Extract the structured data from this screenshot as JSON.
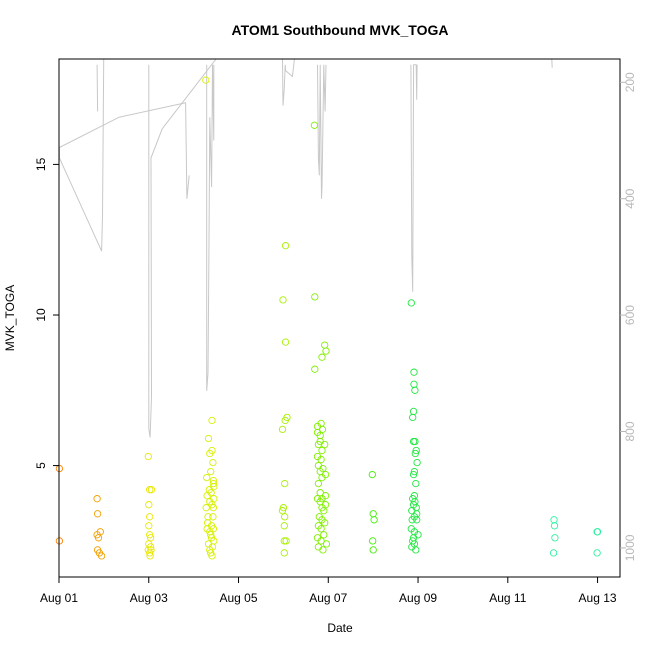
{
  "chart_data": {
    "type": "scatter",
    "title": "ATOM1 Southbound MVK_TOGA",
    "xlabel": "Date",
    "ylabel": "MVK_TOGA",
    "x_unit": "date (August)",
    "xlim": [
      0.0,
      12.5
    ],
    "ylim": [
      1.3,
      18.5
    ],
    "x_ticks": [
      {
        "x": 0,
        "label": "Aug 01"
      },
      {
        "x": 2,
        "label": "Aug 03"
      },
      {
        "x": 4,
        "label": "Aug 05"
      },
      {
        "x": 6,
        "label": "Aug 07"
      },
      {
        "x": 8,
        "label": "Aug 09"
      },
      {
        "x": 10,
        "label": "Aug 11"
      },
      {
        "x": 12,
        "label": "Aug 13"
      }
    ],
    "y_ticks": [
      5,
      10,
      15
    ],
    "right_axis": {
      "ylim": [
        1050,
        160
      ],
      "reversed": true,
      "ticks": [
        200,
        400,
        600,
        800,
        1000
      ],
      "color": "#b8b8b8"
    },
    "point_style": "open-circle",
    "series": [
      {
        "color": "#ff8000",
        "points": [
          [
            0.01,
            4.9
          ],
          [
            0.01,
            2.5
          ]
        ]
      },
      {
        "color": "#f0a000",
        "points": [
          [
            0.85,
            3.9
          ],
          [
            0.86,
            3.4
          ],
          [
            0.85,
            2.7
          ],
          [
            0.88,
            2.6
          ],
          [
            0.92,
            2.8
          ],
          [
            0.86,
            2.2
          ],
          [
            0.9,
            2.1
          ],
          [
            0.95,
            2.0
          ]
        ]
      },
      {
        "color": "#e8e800",
        "points": [
          [
            1.99,
            5.3
          ],
          [
            2.02,
            4.2
          ],
          [
            2.06,
            4.2
          ],
          [
            2.0,
            3.7
          ],
          [
            2.02,
            3.3
          ],
          [
            2.0,
            3.0
          ],
          [
            2.02,
            2.7
          ],
          [
            2.04,
            2.6
          ],
          [
            2.0,
            2.4
          ],
          [
            2.04,
            2.3
          ],
          [
            2.02,
            2.1
          ],
          [
            2.05,
            2.2
          ],
          [
            2.03,
            2.0
          ],
          [
            1.99,
            2.2
          ]
        ]
      },
      {
        "color": "#d8f000",
        "points": [
          [
            3.27,
            17.8
          ],
          [
            3.29,
            4.6
          ],
          [
            3.35,
            4.2
          ],
          [
            3.3,
            4.0
          ],
          [
            3.36,
            3.8
          ],
          [
            3.28,
            3.6
          ],
          [
            3.32,
            3.3
          ],
          [
            3.4,
            3.0
          ],
          [
            3.36,
            2.8
          ],
          [
            3.3,
            2.9
          ],
          [
            3.4,
            2.6
          ],
          [
            3.33,
            2.4
          ],
          [
            3.36,
            2.2
          ],
          [
            3.38,
            2.1
          ],
          [
            3.41,
            6.5
          ],
          [
            3.33,
            5.9
          ],
          [
            3.41,
            5.5
          ],
          [
            3.36,
            5.4
          ],
          [
            3.43,
            5.1
          ],
          [
            3.38,
            4.8
          ],
          [
            3.44,
            4.5
          ],
          [
            3.44,
            4.4
          ],
          [
            3.45,
            4.3
          ],
          [
            3.39,
            4.1
          ],
          [
            3.45,
            3.9
          ],
          [
            3.41,
            3.7
          ],
          [
            3.44,
            3.6
          ],
          [
            3.43,
            3.3
          ],
          [
            3.31,
            3.1
          ],
          [
            3.44,
            2.9
          ],
          [
            3.38,
            2.7
          ],
          [
            3.45,
            2.5
          ],
          [
            3.42,
            2.3
          ],
          [
            3.41,
            2.0
          ]
        ]
      },
      {
        "color": "#a8f000",
        "points": [
          [
            5.05,
            12.3
          ],
          [
            4.99,
            10.5
          ],
          [
            5.05,
            9.1
          ],
          [
            5.08,
            6.6
          ],
          [
            5.04,
            6.5
          ],
          [
            4.98,
            6.2
          ],
          [
            5.03,
            4.4
          ],
          [
            5.0,
            3.6
          ],
          [
            4.98,
            3.5
          ],
          [
            5.03,
            3.3
          ],
          [
            5.02,
            3.0
          ],
          [
            5.02,
            2.5
          ],
          [
            5.06,
            2.5
          ],
          [
            5.02,
            2.1
          ]
        ]
      },
      {
        "color": "#80f000",
        "points": [
          [
            5.69,
            16.3
          ],
          [
            5.7,
            10.6
          ],
          [
            5.7,
            8.2
          ],
          [
            5.86,
            8.6
          ],
          [
            5.92,
            9.0
          ],
          [
            5.95,
            8.8
          ],
          [
            5.76,
            6.3
          ],
          [
            5.84,
            6.4
          ],
          [
            5.76,
            6.1
          ],
          [
            5.82,
            6.0
          ],
          [
            5.87,
            6.2
          ],
          [
            5.82,
            5.8
          ],
          [
            5.78,
            5.7
          ],
          [
            5.92,
            5.7
          ],
          [
            5.86,
            5.5
          ],
          [
            5.76,
            5.3
          ],
          [
            5.84,
            5.2
          ],
          [
            5.78,
            5.0
          ],
          [
            5.88,
            4.9
          ],
          [
            5.82,
            4.8
          ],
          [
            5.94,
            4.7
          ],
          [
            5.86,
            4.6
          ],
          [
            5.78,
            4.4
          ],
          [
            5.82,
            4.1
          ],
          [
            5.94,
            4.0
          ],
          [
            5.76,
            3.9
          ],
          [
            5.86,
            3.9
          ],
          [
            5.82,
            3.8
          ],
          [
            5.94,
            3.7
          ],
          [
            5.86,
            3.6
          ],
          [
            5.9,
            3.5
          ],
          [
            5.8,
            3.3
          ],
          [
            5.86,
            3.2
          ],
          [
            5.92,
            3.1
          ],
          [
            5.78,
            3.0
          ],
          [
            5.84,
            2.9
          ],
          [
            5.9,
            2.7
          ],
          [
            5.76,
            2.6
          ],
          [
            5.84,
            2.5
          ],
          [
            5.96,
            2.4
          ],
          [
            5.78,
            2.3
          ],
          [
            5.88,
            2.2
          ]
        ]
      },
      {
        "color": "#40f000",
        "points": [
          [
            6.98,
            4.7
          ],
          [
            7.0,
            3.4
          ],
          [
            7.02,
            3.2
          ],
          [
            6.99,
            2.5
          ],
          [
            7.0,
            2.2
          ]
        ]
      },
      {
        "color": "#20e840",
        "points": [
          [
            7.85,
            10.4
          ],
          [
            7.91,
            8.1
          ],
          [
            7.91,
            7.7
          ],
          [
            7.93,
            7.5
          ],
          [
            7.9,
            6.8
          ],
          [
            7.88,
            6.6
          ],
          [
            7.9,
            5.8
          ],
          [
            7.93,
            5.8
          ],
          [
            7.96,
            5.5
          ],
          [
            7.94,
            5.4
          ],
          [
            7.98,
            5.1
          ],
          [
            7.92,
            4.8
          ],
          [
            7.9,
            4.7
          ],
          [
            7.95,
            4.4
          ],
          [
            7.92,
            4.0
          ],
          [
            7.88,
            3.9
          ],
          [
            7.93,
            3.8
          ],
          [
            7.9,
            3.7
          ],
          [
            7.96,
            3.6
          ],
          [
            7.86,
            3.5
          ],
          [
            7.97,
            3.4
          ],
          [
            7.92,
            3.3
          ],
          [
            7.87,
            3.2
          ],
          [
            7.97,
            3.2
          ],
          [
            7.85,
            2.9
          ],
          [
            7.92,
            2.8
          ],
          [
            8.0,
            2.7
          ],
          [
            7.9,
            2.6
          ],
          [
            7.88,
            2.5
          ],
          [
            7.92,
            2.4
          ],
          [
            7.86,
            2.3
          ],
          [
            7.95,
            2.2
          ]
        ]
      },
      {
        "color": "#30f0a0",
        "points": [
          [
            11.03,
            3.2
          ],
          [
            11.04,
            3.0
          ],
          [
            11.05,
            2.6
          ],
          [
            11.02,
            2.1
          ],
          [
            11.99,
            2.8
          ],
          [
            12.0,
            2.8
          ],
          [
            11.99,
            2.1
          ]
        ]
      }
    ],
    "gray_trace": {
      "color": "#c8c8c8",
      "axis": "right",
      "segments": [
        [
          [
            0.01,
            312
          ],
          [
            0.01,
            330
          ],
          [
            0.95,
            490
          ],
          [
            0.97,
            430
          ],
          [
            1.0,
            120
          ]
        ],
        [
          [
            0.01,
            312
          ],
          [
            1.34,
            260
          ],
          [
            2.82,
            235
          ],
          [
            2.85,
            400
          ],
          [
            2.9,
            360
          ]
        ],
        [
          [
            0.85,
            170
          ],
          [
            0.86,
            250
          ]
        ],
        [
          [
            2.0,
            170
          ],
          [
            2.0,
            795
          ],
          [
            2.03,
            810
          ],
          [
            2.06,
            740
          ],
          [
            2.05,
            330
          ],
          [
            2.3,
            280
          ],
          [
            4.4,
            70
          ]
        ],
        [
          [
            3.29,
            170
          ],
          [
            3.29,
            730
          ],
          [
            3.32,
            700
          ],
          [
            3.34,
            500
          ],
          [
            3.36,
            260
          ],
          [
            3.4,
            380
          ],
          [
            3.42,
            170
          ],
          [
            3.45,
            300
          ],
          [
            3.45,
            170
          ]
        ],
        [
          [
            4.98,
            160
          ],
          [
            4.99,
            240
          ],
          [
            5.02,
            210
          ],
          [
            5.04,
            170
          ],
          [
            5.05,
            180
          ],
          [
            5.2,
            190
          ],
          [
            5.4,
            60
          ]
        ],
        [
          [
            5.76,
            170
          ],
          [
            5.78,
            330
          ],
          [
            5.8,
            360
          ],
          [
            5.82,
            170
          ],
          [
            5.85,
            400
          ],
          [
            5.86,
            380
          ],
          [
            5.9,
            170
          ],
          [
            5.93,
            250
          ],
          [
            5.95,
            170
          ]
        ],
        [
          [
            7.84,
            170
          ],
          [
            7.86,
            500
          ],
          [
            7.88,
            560
          ],
          [
            7.9,
            170
          ],
          [
            7.96,
            170
          ],
          [
            7.97,
            230
          ],
          [
            7.98,
            170
          ]
        ],
        [
          [
            10.98,
            160
          ],
          [
            10.99,
            175
          ]
        ]
      ]
    }
  }
}
